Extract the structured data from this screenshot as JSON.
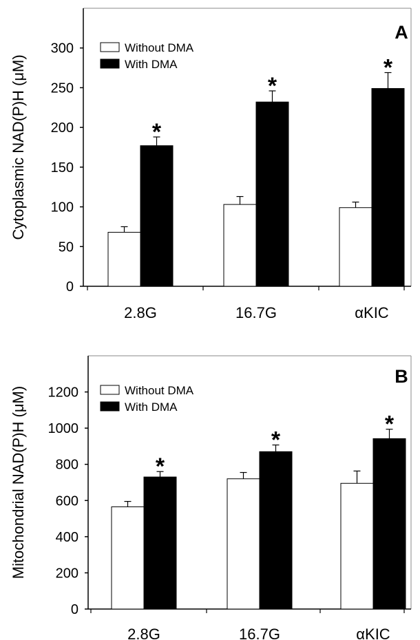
{
  "chart_data": [
    {
      "type": "bar",
      "panel_letter": "A",
      "ylabel": "Cytoplasmic NAD(P)H (μM)",
      "categories": [
        "2.8G",
        "16.7G",
        "αKIC"
      ],
      "ylim": [
        0,
        350
      ],
      "yticks": [
        0,
        50,
        100,
        150,
        200,
        250,
        300
      ],
      "legend_position": "top-left",
      "series": [
        {
          "name": "Without DMA",
          "fill": "#ffffff",
          "values": [
            68,
            103,
            99
          ],
          "errors": [
            7,
            10,
            7
          ]
        },
        {
          "name": "With DMA",
          "fill": "#000000",
          "values": [
            177,
            232,
            249
          ],
          "errors": [
            11,
            14,
            20
          ]
        }
      ],
      "annotations": [
        "*",
        "*",
        "*"
      ]
    },
    {
      "type": "bar",
      "panel_letter": "B",
      "ylabel": "Mitochondrial  NAD(P)H (μM)",
      "categories": [
        "2.8G",
        "16.7G",
        "αKIC"
      ],
      "ylim": [
        0,
        1400
      ],
      "yticks": [
        0,
        200,
        400,
        600,
        800,
        1000,
        1200
      ],
      "legend_position": "top-left",
      "series": [
        {
          "name": "Without DMA",
          "fill": "#ffffff",
          "values": [
            565,
            720,
            695
          ],
          "errors": [
            30,
            35,
            68
          ]
        },
        {
          "name": "With DMA",
          "fill": "#000000",
          "values": [
            730,
            870,
            942
          ],
          "errors": [
            30,
            37,
            52
          ]
        }
      ],
      "annotations": [
        "*",
        "*",
        "*"
      ]
    }
  ]
}
